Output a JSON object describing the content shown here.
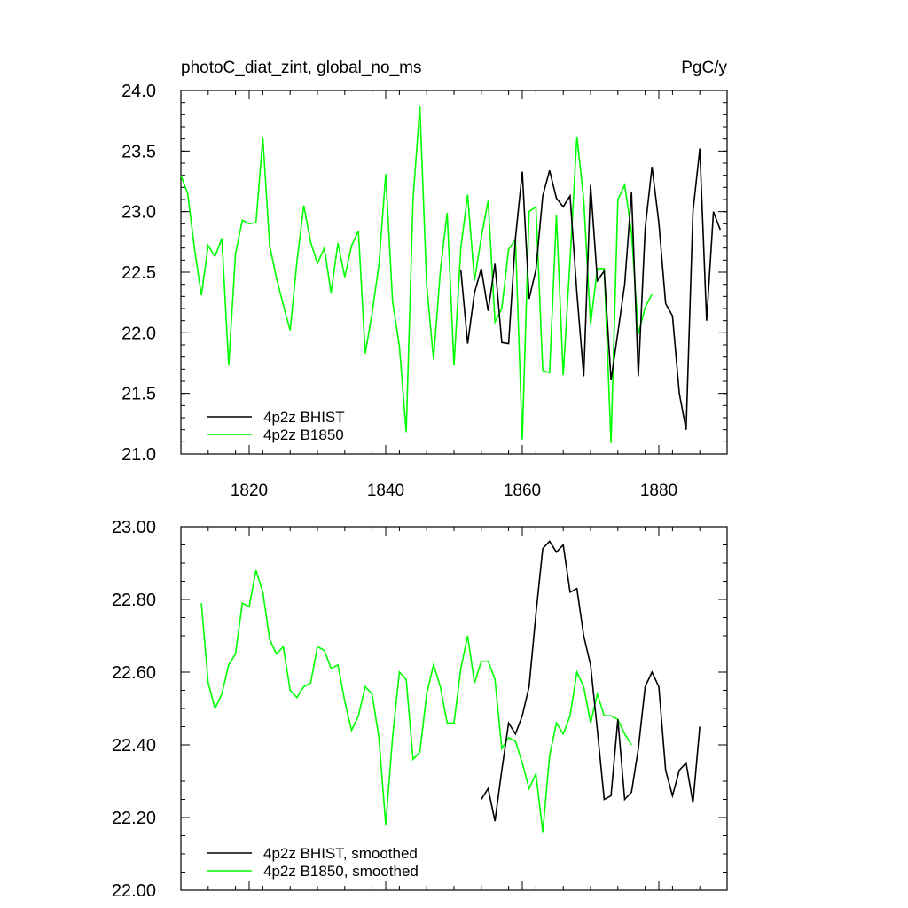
{
  "figure": {
    "title_left": "photoC_diat_zint, global_no_ms",
    "title_right": "PgC/y"
  },
  "colors": {
    "bhist": "#000000",
    "b1850": "#00ff00"
  },
  "chart_data": [
    {
      "type": "line",
      "xlim": [
        1810,
        1890
      ],
      "ylim": [
        21.0,
        24.0
      ],
      "yticks": [
        "21.0",
        "21.5",
        "22.0",
        "22.5",
        "23.0",
        "23.5",
        "24.0"
      ],
      "xticks": [
        "1820",
        "1840",
        "1860",
        "1880"
      ],
      "xticks_values": [
        1820,
        1840,
        1860,
        1880
      ],
      "yticks_values": [
        21.0,
        21.5,
        22.0,
        22.5,
        23.0,
        23.5,
        24.0
      ],
      "grid": false,
      "legend_position": "bottom-left",
      "series": [
        {
          "name": "4p2z BHIST",
          "color": "#000000",
          "x": [
            1851,
            1852,
            1853,
            1854,
            1855,
            1856,
            1857,
            1858,
            1859,
            1860,
            1861,
            1862,
            1863,
            1864,
            1865,
            1866,
            1867,
            1868,
            1869,
            1870,
            1871,
            1872,
            1873,
            1874,
            1875,
            1876,
            1877,
            1878,
            1879,
            1880,
            1881,
            1882,
            1883,
            1884,
            1885,
            1886,
            1887,
            1888,
            1889
          ],
          "y": [
            22.52,
            21.91,
            22.33,
            22.53,
            22.18,
            22.57,
            21.92,
            21.91,
            22.78,
            23.33,
            22.28,
            22.52,
            23.13,
            23.34,
            23.11,
            23.04,
            23.13,
            22.33,
            21.64,
            23.22,
            22.43,
            22.51,
            21.61,
            22.0,
            22.4,
            23.16,
            21.64,
            22.86,
            23.37,
            22.91,
            22.24,
            22.14,
            21.5,
            21.2,
            23.0,
            23.52,
            22.1,
            23.0,
            22.85
          ]
        },
        {
          "name": "4p2z B1850",
          "color": "#00ff00",
          "x": [
            1810,
            1811,
            1812,
            1813,
            1814,
            1815,
            1816,
            1817,
            1818,
            1819,
            1820,
            1821,
            1822,
            1823,
            1824,
            1825,
            1826,
            1827,
            1828,
            1829,
            1830,
            1831,
            1832,
            1833,
            1834,
            1835,
            1836,
            1837,
            1838,
            1839,
            1840,
            1841,
            1842,
            1843,
            1844,
            1845,
            1846,
            1847,
            1848,
            1849,
            1850,
            1851,
            1852,
            1853,
            1854,
            1855,
            1856,
            1857,
            1858,
            1859,
            1860,
            1861,
            1862,
            1863,
            1864,
            1865,
            1866,
            1867,
            1868,
            1869,
            1870,
            1871,
            1872,
            1873,
            1874,
            1875,
            1876,
            1877,
            1878,
            1879
          ],
          "y": [
            23.3,
            23.15,
            22.69,
            22.31,
            22.72,
            22.63,
            22.78,
            21.73,
            22.65,
            22.93,
            22.9,
            22.91,
            23.61,
            22.72,
            22.45,
            22.23,
            22.02,
            22.59,
            23.05,
            22.75,
            22.57,
            22.7,
            22.33,
            22.74,
            22.46,
            22.72,
            22.84,
            21.83,
            22.16,
            22.56,
            23.31,
            22.26,
            21.89,
            21.18,
            23.1,
            23.87,
            22.39,
            21.78,
            22.51,
            22.99,
            21.73,
            22.7,
            23.14,
            22.43,
            22.79,
            23.09,
            22.09,
            22.2,
            22.69,
            22.77,
            21.12,
            23.0,
            23.04,
            21.69,
            21.67,
            22.97,
            21.65,
            22.6,
            23.62,
            23.1,
            22.07,
            22.53,
            22.53,
            21.09,
            23.1,
            23.22,
            22.83,
            21.99,
            22.21,
            22.32
          ]
        }
      ]
    },
    {
      "type": "line",
      "xlim": [
        1810,
        1890
      ],
      "ylim": [
        22.0,
        23.0
      ],
      "yticks": [
        "22.00",
        "22.20",
        "22.40",
        "22.60",
        "22.80",
        "23.00"
      ],
      "yticks_values": [
        22.0,
        22.2,
        22.4,
        22.6,
        22.8,
        23.0
      ],
      "xticks_values": [
        1820,
        1840,
        1860,
        1880
      ],
      "grid": false,
      "legend_position": "bottom-left",
      "series": [
        {
          "name": "4p2z BHIST, smoothed",
          "color": "#000000",
          "x": [
            1854,
            1855,
            1856,
            1857,
            1858,
            1859,
            1860,
            1861,
            1862,
            1863,
            1864,
            1865,
            1866,
            1867,
            1868,
            1869,
            1870,
            1871,
            1872,
            1873,
            1874,
            1875,
            1876,
            1877,
            1878,
            1879,
            1880,
            1881,
            1882,
            1883,
            1884,
            1885,
            1886
          ],
          "y": [
            22.25,
            22.28,
            22.19,
            22.33,
            22.46,
            22.43,
            22.48,
            22.56,
            22.76,
            22.94,
            22.96,
            22.93,
            22.95,
            22.82,
            22.83,
            22.7,
            22.62,
            22.44,
            22.25,
            22.26,
            22.47,
            22.25,
            22.27,
            22.39,
            22.56,
            22.6,
            22.56,
            22.33,
            22.26,
            22.33,
            22.35,
            22.24,
            22.45
          ]
        },
        {
          "name": "4p2z B1850, smoothed",
          "color": "#00ff00",
          "x": [
            1813,
            1814,
            1815,
            1816,
            1817,
            1818,
            1819,
            1820,
            1821,
            1822,
            1823,
            1824,
            1825,
            1826,
            1827,
            1828,
            1829,
            1830,
            1831,
            1832,
            1833,
            1834,
            1835,
            1836,
            1837,
            1838,
            1839,
            1840,
            1841,
            1842,
            1843,
            1844,
            1845,
            1846,
            1847,
            1848,
            1849,
            1850,
            1851,
            1852,
            1853,
            1854,
            1855,
            1856,
            1857,
            1858,
            1859,
            1860,
            1861,
            1862,
            1863,
            1864,
            1865,
            1866,
            1867,
            1868,
            1869,
            1870,
            1871,
            1872,
            1873,
            1874,
            1875,
            1876
          ],
          "y": [
            22.79,
            22.57,
            22.5,
            22.54,
            22.62,
            22.65,
            22.79,
            22.78,
            22.88,
            22.82,
            22.69,
            22.65,
            22.67,
            22.55,
            22.53,
            22.56,
            22.57,
            22.67,
            22.66,
            22.61,
            22.62,
            22.52,
            22.44,
            22.48,
            22.56,
            22.54,
            22.42,
            22.18,
            22.42,
            22.6,
            22.58,
            22.36,
            22.38,
            22.54,
            22.62,
            22.56,
            22.46,
            22.46,
            22.61,
            22.7,
            22.57,
            22.63,
            22.63,
            22.58,
            22.39,
            22.42,
            22.41,
            22.35,
            22.28,
            22.32,
            22.16,
            22.37,
            22.46,
            22.43,
            22.48,
            22.6,
            22.56,
            22.46,
            22.54,
            22.48,
            22.48,
            22.47,
            22.43,
            22.4
          ]
        }
      ]
    }
  ]
}
